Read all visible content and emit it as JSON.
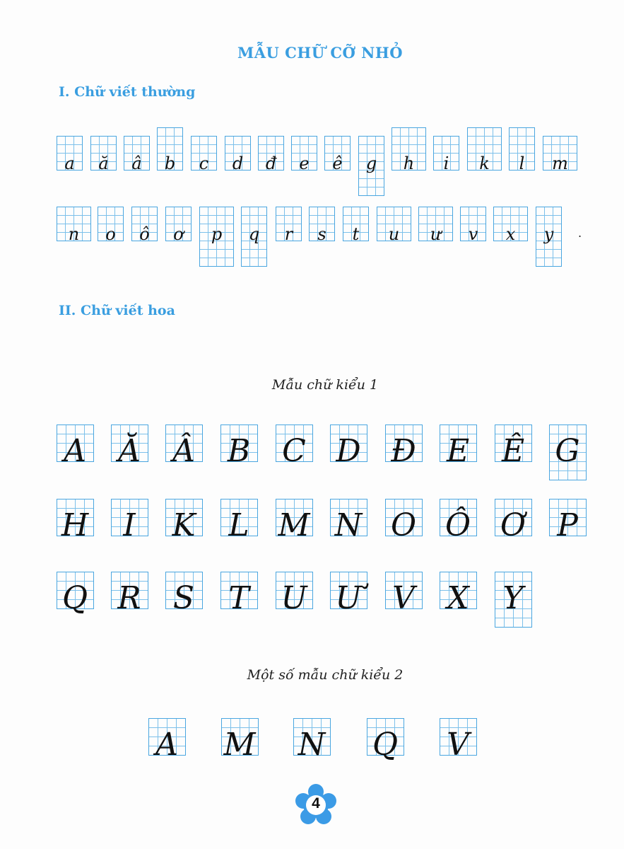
{
  "title": "MẪU CHỮ CỠ NHỎ",
  "section1": {
    "heading": "I. Chữ viết thường",
    "row1": [
      "a",
      "ă",
      "â",
      "b",
      "c",
      "d",
      "đ",
      "e",
      "ê",
      "g",
      "h",
      "i",
      "k",
      "l",
      "m"
    ],
    "row2": [
      "n",
      "o",
      "ô",
      "ơ",
      "p",
      "q",
      "r",
      "s",
      "t",
      "u",
      "ư",
      "v",
      "x",
      "y"
    ],
    "trailing_mark": "."
  },
  "section2": {
    "heading": "II. Chữ viết hoa",
    "style1_caption": "Mẫu chữ kiểu 1",
    "style1_rows": [
      [
        "A",
        "Ă",
        "Â",
        "B",
        "C",
        "D",
        "Đ",
        "E",
        "Ê",
        "G"
      ],
      [
        "H",
        "I",
        "K",
        "L",
        "M",
        "N",
        "O",
        "Ô",
        "Ơ",
        "P"
      ],
      [
        "Q",
        "R",
        "S",
        "T",
        "U",
        "Ư",
        "V",
        "X",
        "Y"
      ]
    ],
    "style2_caption": "Một số mẫu chữ kiểu 2",
    "style2_row": [
      "A",
      "M",
      "N",
      "Q",
      "V"
    ]
  },
  "page_number": "4",
  "colors": {
    "accent": "#3a9ee0",
    "grid": "#4aa6e0",
    "flower": "#3b9be6"
  }
}
